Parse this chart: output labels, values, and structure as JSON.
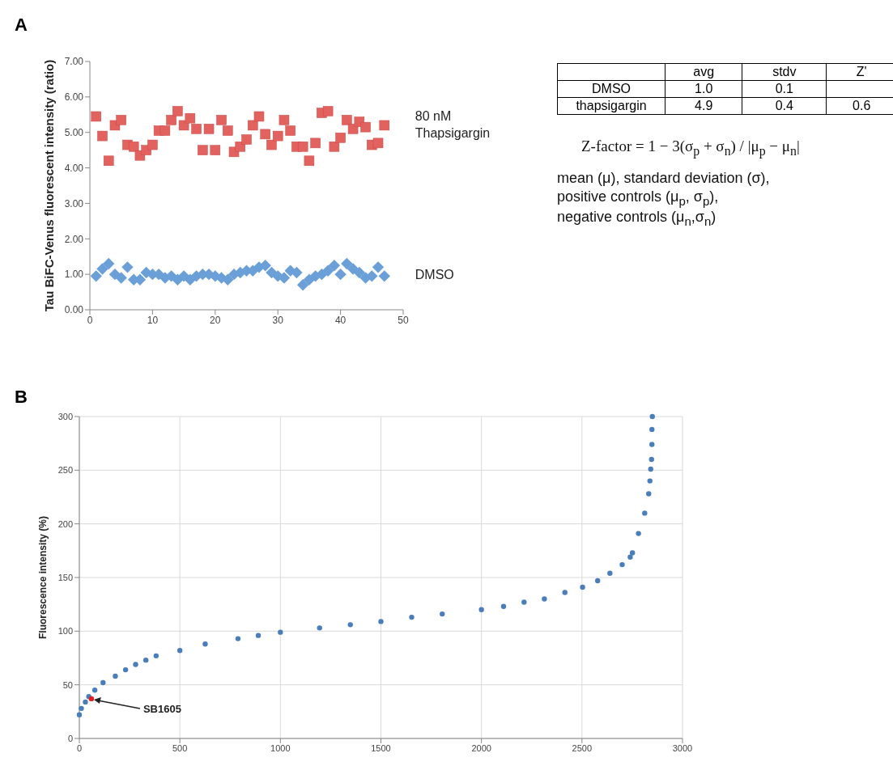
{
  "chart_data": [
    {
      "type": "scatter",
      "title": "A",
      "ylabel": "Tau BiFC-Venus fluorescent intensity (ratio)",
      "grid": false,
      "xlim": [
        0,
        50
      ],
      "xticks": [
        0,
        10,
        20,
        30,
        40,
        50
      ],
      "ylim": [
        0,
        7
      ],
      "yticks": [
        {
          "value": 0,
          "label": "0.00"
        },
        {
          "value": 1,
          "label": "1.00"
        },
        {
          "value": 2,
          "label": "2.00"
        },
        {
          "value": 3,
          "label": "3.00"
        },
        {
          "value": 4,
          "label": "4.00"
        },
        {
          "value": 5,
          "label": "5.00"
        },
        {
          "value": 6,
          "label": "6.00"
        },
        {
          "value": 7,
          "label": "7.00"
        }
      ],
      "x": [
        1,
        2,
        3,
        4,
        5,
        6,
        7,
        8,
        9,
        10,
        11,
        12,
        13,
        14,
        15,
        16,
        17,
        18,
        19,
        20,
        21,
        22,
        23,
        24,
        25,
        26,
        27,
        28,
        29,
        30,
        31,
        32,
        33,
        34,
        35,
        36,
        37,
        38,
        39,
        40,
        41,
        42,
        43,
        44,
        45,
        46,
        47
      ],
      "series": [
        {
          "name": "80 nM Thapsigargin",
          "color": "#e2625f",
          "marker": "square",
          "values": [
            5.45,
            4.9,
            4.2,
            5.2,
            5.35,
            4.65,
            4.6,
            4.35,
            4.5,
            4.65,
            5.05,
            5.05,
            5.35,
            5.6,
            5.2,
            5.4,
            5.1,
            4.5,
            5.1,
            4.5,
            5.35,
            5.05,
            4.45,
            4.6,
            4.8,
            5.2,
            5.45,
            4.95,
            4.65,
            4.9,
            5.35,
            5.05,
            4.6,
            4.6,
            4.2,
            4.7,
            5.55,
            5.6,
            4.6,
            4.85,
            5.35,
            5.1,
            5.3,
            5.15,
            4.65,
            4.7,
            5.2
          ]
        },
        {
          "name": "DMSO",
          "color": "#6b9fd8",
          "marker": "diamond",
          "values": [
            0.95,
            1.15,
            1.3,
            1.0,
            0.9,
            1.2,
            0.85,
            0.85,
            1.05,
            1.0,
            1.0,
            0.9,
            0.95,
            0.85,
            0.95,
            0.85,
            0.95,
            1.0,
            1.0,
            0.95,
            0.9,
            0.85,
            1.0,
            1.05,
            1.1,
            1.1,
            1.2,
            1.25,
            1.05,
            0.95,
            0.9,
            1.1,
            1.05,
            0.7,
            0.85,
            0.95,
            1.0,
            1.1,
            1.25,
            1.0,
            1.3,
            1.15,
            1.05,
            0.9,
            0.95,
            1.2,
            0.95
          ]
        }
      ]
    },
    {
      "type": "other",
      "categories": [
        "avg",
        "stdv",
        "Z'"
      ],
      "y_categories": [
        "DMSO",
        "thapsigargin"
      ],
      "cell_labels": [
        [
          "1.0",
          "0.1",
          null
        ],
        [
          "4.9",
          "0.4",
          "0.6"
        ]
      ],
      "annotations": [
        "Z-factor = 1 − 3(σ$_{p}$ + σ$_{n}$) / |μ$_{p}$ − μ$_{n}$|",
        "mean (μ), standard deviation (σ),",
        "positive controls (μ$_{p}$, σ$_{p}$),",
        "negative controls (μ$_{n}$,σ$_{n}$)"
      ]
    },
    {
      "type": "scatter",
      "title": "B",
      "ylabel": "Fluorescence intensity (%)",
      "marker": "circle",
      "grid": true,
      "xlim": [
        0,
        3000
      ],
      "xticks": [
        0,
        500,
        1000,
        1500,
        2000,
        2500,
        3000
      ],
      "ylim": [
        0,
        300
      ],
      "yticks": [
        0,
        50,
        100,
        150,
        200,
        250,
        300
      ],
      "series": [
        {
          "color": "#4a7ebb",
          "x": [
            0,
            10,
            30,
            47,
            77,
            118,
            179,
            230,
            280,
            331,
            382,
            500,
            626,
            789,
            890,
            1000,
            1195,
            1348,
            1500,
            1653,
            1805,
            2000,
            2110,
            2212,
            2313,
            2415,
            2503,
            2578,
            2639,
            2700,
            2740,
            2751,
            2781,
            2812,
            2832,
            2838,
            2842,
            2846,
            2848,
            2848,
            2850
          ],
          "values": [
            22,
            28,
            34,
            39,
            45,
            52,
            58,
            64,
            69,
            73,
            77,
            82,
            88,
            93,
            96,
            99,
            103,
            106,
            109,
            113,
            116,
            120,
            123,
            127,
            130,
            136,
            141,
            147,
            154,
            162,
            169,
            173,
            191,
            210,
            228,
            240,
            251,
            260,
            274,
            288,
            300
          ]
        },
        {
          "color": "#e02020",
          "x": [
            60
          ],
          "values": [
            37
          ]
        }
      ],
      "annotations": [
        {
          "text": "SB1605",
          "x": 60,
          "y": 37
        }
      ]
    }
  ]
}
